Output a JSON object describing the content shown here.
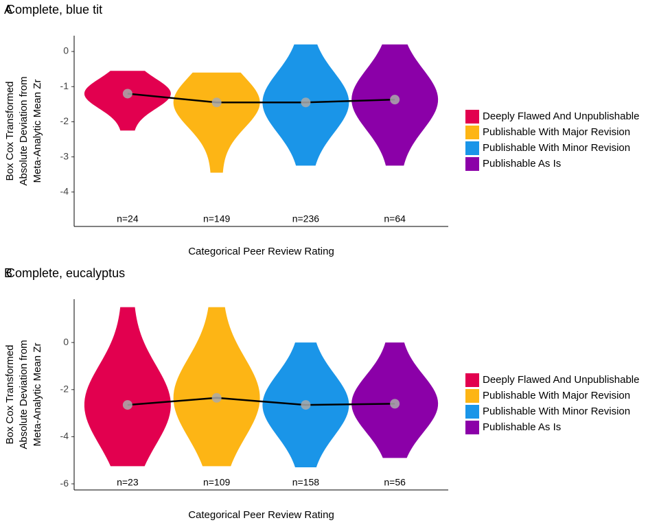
{
  "chart_data": [
    {
      "type": "violin",
      "tag": "A",
      "title": "Complete, blue tit",
      "x_label": "Categorical Peer Review Rating",
      "y_label": [
        "Box Cox Transformed",
        "Absolute Deviation from",
        "Meta-Analytic Mean Zr"
      ],
      "categories": [
        "Deeply Flawed And Unpublishable",
        "Publishable With Major Revision",
        "Publishable With Minor Revision",
        "Publishable As Is"
      ],
      "colors": [
        "#e2004f",
        "#fdb515",
        "#1a95e8",
        "#8b00a8"
      ],
      "means": [
        -1.2,
        -1.45,
        -1.45,
        -1.37
      ],
      "mins": [
        -2.25,
        -3.45,
        -3.25,
        -3.25
      ],
      "maxs": [
        -0.55,
        -0.6,
        0.2,
        0.2
      ],
      "values": [
        24,
        149,
        236,
        64
      ],
      "value_labels": [
        "n=24",
        "n=149",
        "n=236",
        "n=64"
      ],
      "ylim": [
        -4.98,
        0.45
      ],
      "yticks": [
        0,
        -1,
        -2,
        -3,
        -4
      ]
    },
    {
      "type": "violin",
      "tag": "B",
      "title": "Complete, eucalyptus",
      "x_label": "Categorical Peer Review Rating",
      "y_label": [
        "Box Cox Transformed",
        "Absolute Deviation from",
        "Meta-Analytic Mean Zr"
      ],
      "categories": [
        "Deeply Flawed And Unpublishable",
        "Publishable With Major Revision",
        "Publishable With Minor Revision",
        "Publishable As Is"
      ],
      "colors": [
        "#e2004f",
        "#fdb515",
        "#1a95e8",
        "#8b00a8"
      ],
      "means": [
        -2.65,
        -2.35,
        -2.65,
        -2.6
      ],
      "mins": [
        -5.25,
        -5.25,
        -5.3,
        -4.9
      ],
      "maxs": [
        1.5,
        1.5,
        0,
        0
      ],
      "values": [
        23,
        109,
        158,
        56
      ],
      "value_labels": [
        "n=23",
        "n=109",
        "n=158",
        "n=56"
      ],
      "ylim": [
        -6.26,
        1.84
      ],
      "yticks": [
        0,
        -2,
        -4,
        -6
      ]
    }
  ]
}
